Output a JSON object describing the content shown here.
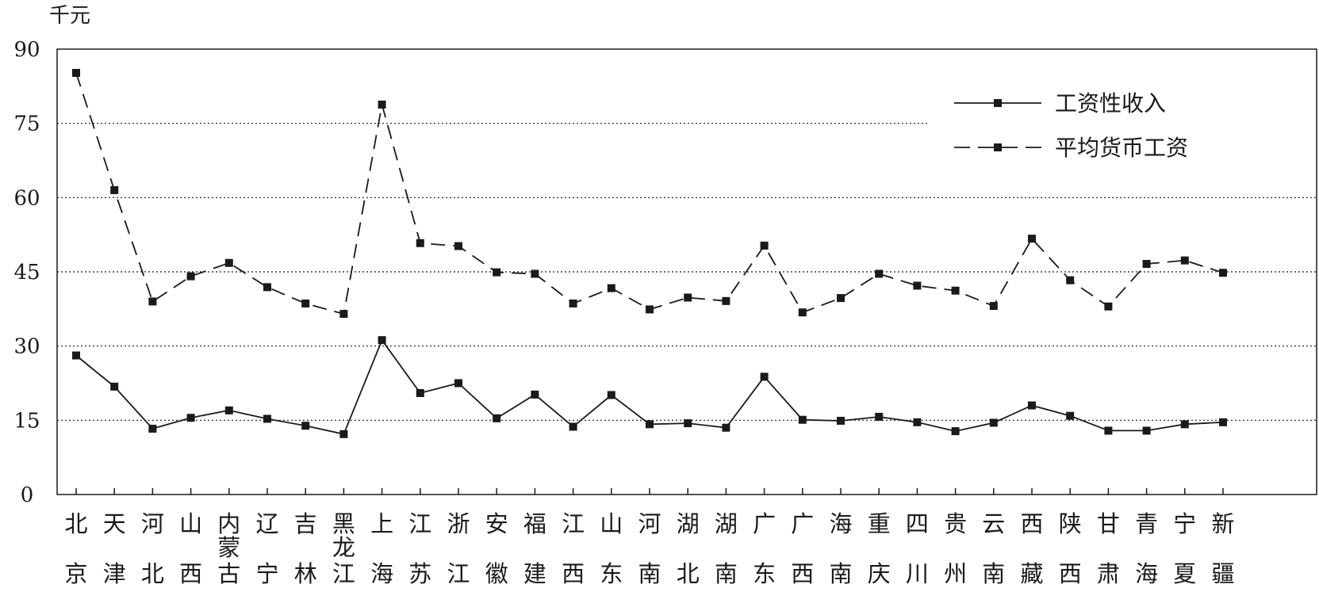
{
  "chart_data": {
    "type": "line",
    "unit_label": "千元",
    "ylim": [
      0,
      90
    ],
    "yticks": [
      0,
      15,
      30,
      45,
      60,
      75,
      90
    ],
    "grid": "dotted horizontal at 15, 30, 45, 60, 75",
    "legend_position": "top-right",
    "categories": [
      [
        "北",
        "京"
      ],
      [
        "天",
        "津"
      ],
      [
        "河",
        "北"
      ],
      [
        "山",
        "西"
      ],
      [
        "内",
        "蒙",
        "古"
      ],
      [
        "辽",
        "宁"
      ],
      [
        "吉",
        "林"
      ],
      [
        "黑",
        "龙",
        "江"
      ],
      [
        "上",
        "海"
      ],
      [
        "江",
        "苏"
      ],
      [
        "浙",
        "江"
      ],
      [
        "安",
        "徽"
      ],
      [
        "福",
        "建"
      ],
      [
        "江",
        "西"
      ],
      [
        "山",
        "东"
      ],
      [
        "河",
        "南"
      ],
      [
        "湖",
        "北"
      ],
      [
        "湖",
        "南"
      ],
      [
        "广",
        "东"
      ],
      [
        "广",
        "西"
      ],
      [
        "海",
        "南"
      ],
      [
        "重",
        "庆"
      ],
      [
        "四",
        "川"
      ],
      [
        "贵",
        "州"
      ],
      [
        "云",
        "南"
      ],
      [
        "西",
        "藏"
      ],
      [
        "陕",
        "西"
      ],
      [
        "甘",
        "肃"
      ],
      [
        "青",
        "海"
      ],
      [
        "宁",
        "夏"
      ],
      [
        "新",
        "疆"
      ]
    ],
    "series": [
      {
        "name": "工资性收入",
        "line_style": "solid",
        "values": [
          28.1,
          21.8,
          13.3,
          15.5,
          17.0,
          15.3,
          13.9,
          12.2,
          31.2,
          20.5,
          22.5,
          15.4,
          20.2,
          13.7,
          20.1,
          14.2,
          14.4,
          13.5,
          23.8,
          15.1,
          14.9,
          15.7,
          14.6,
          12.8,
          14.5,
          18.0,
          15.9,
          12.9,
          12.9,
          14.2,
          14.6
        ]
      },
      {
        "name": "平均货币工资",
        "line_style": "dashed",
        "values": [
          85.2,
          61.5,
          39.0,
          44.1,
          46.8,
          41.9,
          38.6,
          36.5,
          78.8,
          50.8,
          50.2,
          44.9,
          44.6,
          38.6,
          41.7,
          37.4,
          39.8,
          39.1,
          50.3,
          36.8,
          39.7,
          44.6,
          42.2,
          41.2,
          38.1,
          51.7,
          43.3,
          38.0,
          46.6,
          47.3,
          44.8
        ]
      }
    ]
  }
}
